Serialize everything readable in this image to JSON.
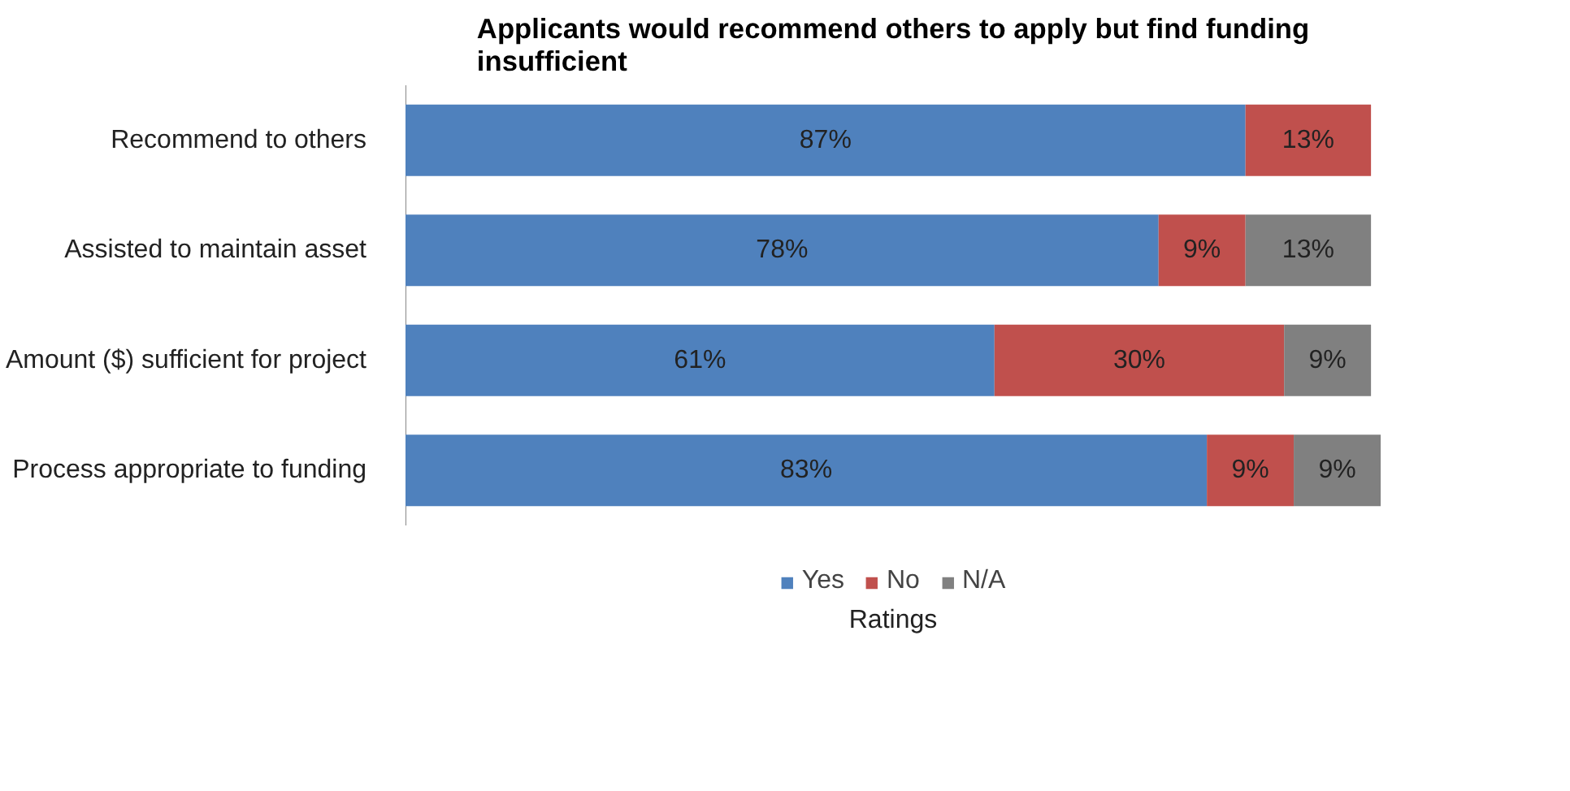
{
  "chart_data": {
    "type": "bar",
    "orientation": "horizontal",
    "stacked": true,
    "title": "Applicants would recommend others to apply but find funding\ninsufficient",
    "xlabel": "Ratings",
    "categories": [
      "Recommend to others",
      "Assisted to maintain asset",
      "Amount ($) sufficient for project",
      "Process appropriate to funding"
    ],
    "series": [
      {
        "name": "Yes",
        "color": "#4f81bd",
        "values": [
          87,
          78,
          61,
          83
        ],
        "value_labels": [
          "87%",
          "78%",
          "61%",
          "83%"
        ]
      },
      {
        "name": "No",
        "color": "#c0504d",
        "values": [
          13,
          9,
          30,
          9
        ],
        "value_labels": [
          "13%",
          "9%",
          "30%",
          "9%"
        ]
      },
      {
        "name": "N/A",
        "color": "#808080",
        "values": [
          null,
          13,
          9,
          9
        ],
        "value_labels": [
          null,
          "13%",
          "9%",
          "9%"
        ]
      }
    ],
    "tick_labels": "y",
    "legend": "bottom"
  }
}
